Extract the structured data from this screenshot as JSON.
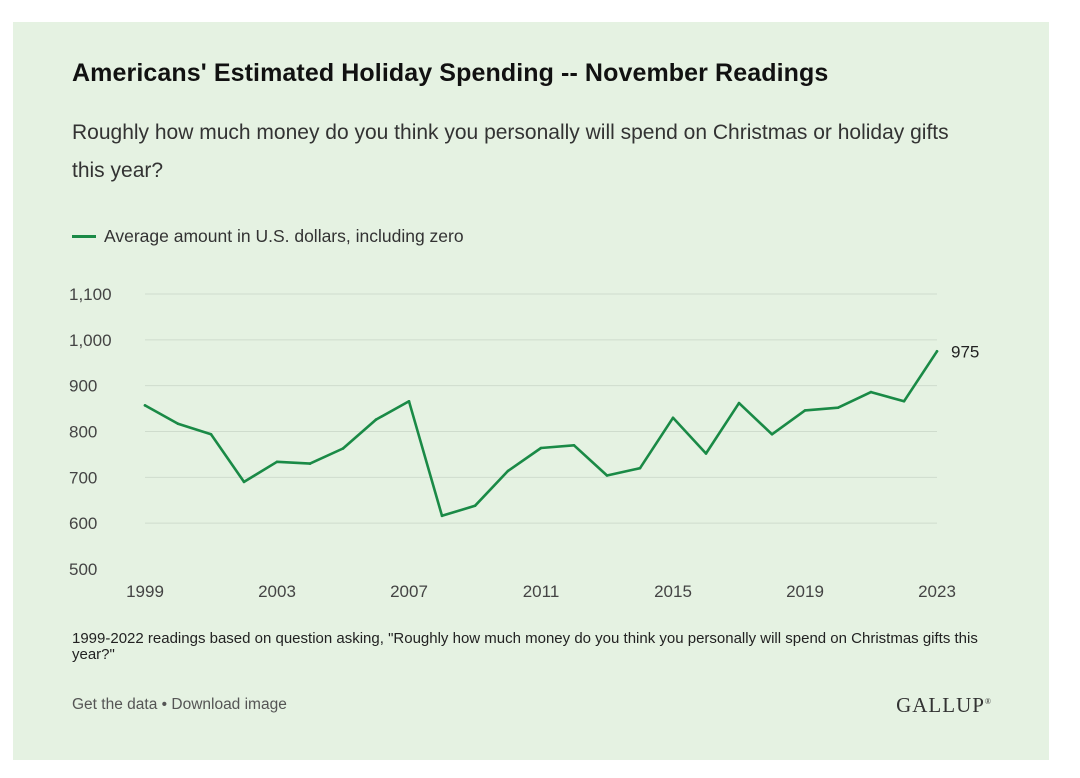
{
  "colors": {
    "background": "#e5f2e2",
    "line": "#1a8a46",
    "grid": "#cfdccd"
  },
  "chart_data": {
    "type": "line",
    "title": "Americans' Estimated Holiday Spending -- November Readings",
    "subtitle": "Roughly how much money do you think you personally will spend on Christmas or holiday gifts this year?",
    "series": [
      {
        "name": "Average amount in U.S. dollars, including zero",
        "x": [
          1999,
          2000,
          2001,
          2002,
          2003,
          2004,
          2005,
          2006,
          2007,
          2008,
          2009,
          2010,
          2011,
          2012,
          2013,
          2014,
          2015,
          2016,
          2017,
          2018,
          2019,
          2020,
          2021,
          2022,
          2023
        ],
        "values": [
          857,
          817,
          794,
          690,
          734,
          730,
          763,
          826,
          866,
          616,
          638,
          714,
          764,
          770,
          704,
          720,
          830,
          752,
          862,
          794,
          846,
          852,
          886,
          866,
          975
        ]
      }
    ],
    "end_label": "975",
    "xlabel": "",
    "ylabel": "",
    "ylim": [
      500,
      1100
    ],
    "yticks": [
      500,
      600,
      700,
      800,
      900,
      1000,
      1100
    ],
    "ytick_labels": [
      "500",
      "600",
      "700",
      "800",
      "900",
      "1,000",
      "1,100"
    ],
    "xticks": [
      1999,
      2003,
      2007,
      2011,
      2015,
      2019,
      2023
    ],
    "xtick_labels": [
      "1999",
      "2003",
      "2007",
      "2011",
      "2015",
      "2019",
      "2023"
    ],
    "grid": true,
    "legend_position": "top-left"
  },
  "footnote": "1999-2022 readings based on question asking, \"Roughly how much money do you think you personally will spend on Christmas gifts this year?\"",
  "links": {
    "get_data": "Get the data",
    "separator": "•",
    "download": "Download image"
  },
  "logo": {
    "text": "GALLUP",
    "mark": "®"
  }
}
